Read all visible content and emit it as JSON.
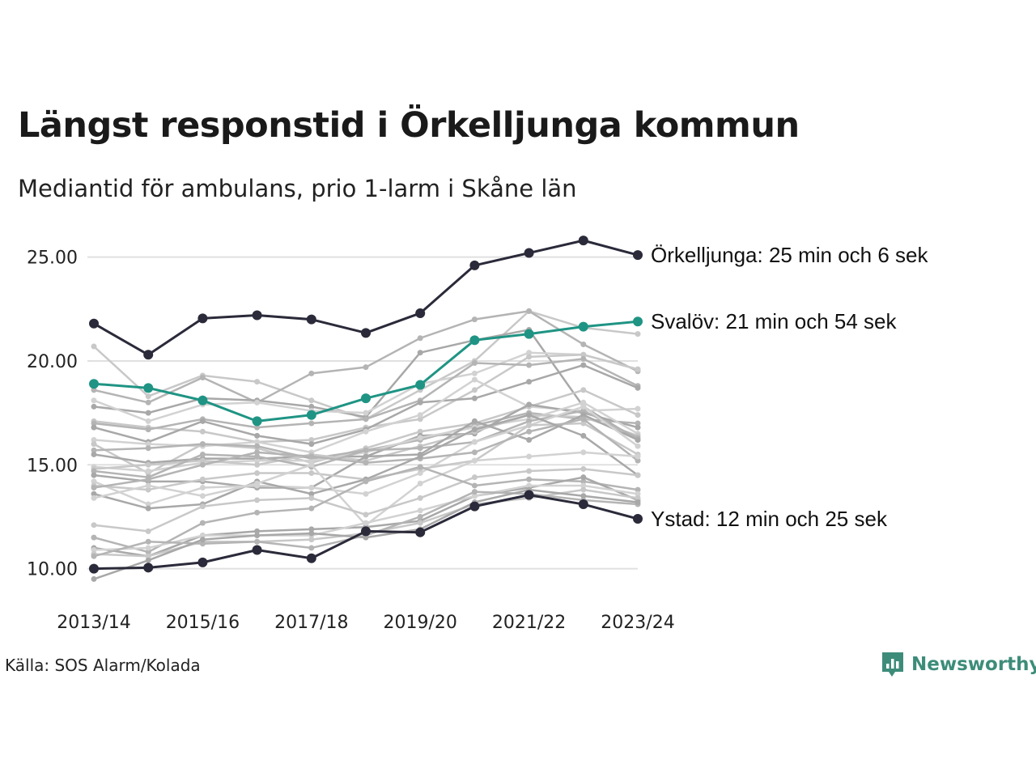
{
  "header": {
    "title": "Längst responstid i Örkelljunga kommun",
    "subtitle": "Mediantid för ambulans, prio 1-larm i Skåne län"
  },
  "footer": {
    "source": "Källa: SOS Alarm/Kolada",
    "brand": "Newsworthy"
  },
  "colors": {
    "highlight": "#2a2a3a",
    "accent": "#1f9484",
    "background_lines": [
      "#c8c8c8",
      "#b4b4b4",
      "#a8a8a8",
      "#d2d2d2"
    ],
    "grid": "#e0e0e0",
    "brand": "#3d8c7a"
  },
  "chart_data": {
    "type": "line",
    "x": [
      "2013/14",
      "2014/15",
      "2015/16",
      "2016/17",
      "2017/18",
      "2018/19",
      "2019/20",
      "2020/21",
      "2021/22",
      "2022/23",
      "2023/24"
    ],
    "x_tick_labels": [
      "2013/14",
      "2015/16",
      "2017/18",
      "2019/20",
      "2021/22",
      "2023/24"
    ],
    "y_ticks": [
      "10.00",
      "15.00",
      "20.00",
      "25.00"
    ],
    "ylim": [
      9.4,
      26.0
    ],
    "grid": true,
    "labeled_series": [
      {
        "name": "Örkelljunga",
        "label": "Örkelljunga: 25 min och 6 sek",
        "role": "highlight",
        "values": [
          21.8,
          20.3,
          22.05,
          22.2,
          22.0,
          21.35,
          22.3,
          24.6,
          25.2,
          25.8,
          25.1
        ]
      },
      {
        "name": "Svalöv",
        "label": "Svalöv: 21 min och 54 sek",
        "role": "accent",
        "values": [
          18.9,
          18.7,
          18.1,
          17.1,
          17.4,
          18.2,
          18.85,
          21.0,
          21.3,
          21.65,
          21.9
        ]
      },
      {
        "name": "Ystad",
        "label": "Ystad: 12 min och 25 sek",
        "role": "highlight",
        "values": [
          10.0,
          10.05,
          10.3,
          10.9,
          10.5,
          11.8,
          11.75,
          13.0,
          13.55,
          13.1,
          12.4
        ]
      }
    ],
    "background_series": [
      [
        20.7,
        18.3,
        19.3,
        19.0,
        18.1,
        17.2,
        18.6,
        20.0,
        22.4,
        21.6,
        21.3
      ],
      [
        18.6,
        18.0,
        19.2,
        18.0,
        19.4,
        19.7,
        21.1,
        22.0,
        22.4,
        20.8,
        19.5
      ],
      [
        17.8,
        17.5,
        18.2,
        18.1,
        17.8,
        17.3,
        20.4,
        21.0,
        21.5,
        17.8,
        16.2
      ],
      [
        18.1,
        17.1,
        17.9,
        18.0,
        17.6,
        17.5,
        18.9,
        19.4,
        20.4,
        20.3,
        19.6
      ],
      [
        17.1,
        16.8,
        16.6,
        16.1,
        16.2,
        16.8,
        17.2,
        18.6,
        20.2,
        20.3,
        19.6
      ],
      [
        17.0,
        16.7,
        17.2,
        16.8,
        17.0,
        17.2,
        18.1,
        19.9,
        19.8,
        20.1,
        18.8
      ],
      [
        16.8,
        16.1,
        17.1,
        16.4,
        16.0,
        16.7,
        18.0,
        18.2,
        19.0,
        19.8,
        18.7
      ],
      [
        16.2,
        16.0,
        15.9,
        16.1,
        15.6,
        16.6,
        17.4,
        19.1,
        17.8,
        17.6,
        17.7
      ],
      [
        16.0,
        14.6,
        16.0,
        15.8,
        15.1,
        15.8,
        16.6,
        17.0,
        17.8,
        18.6,
        17.4
      ],
      [
        15.7,
        15.8,
        16.0,
        15.9,
        15.3,
        15.7,
        16.2,
        16.9,
        17.5,
        17.2,
        17.0
      ],
      [
        15.5,
        15.1,
        15.3,
        15.3,
        15.4,
        15.4,
        16.4,
        16.5,
        17.9,
        17.5,
        16.8
      ],
      [
        14.9,
        14.7,
        15.1,
        15.2,
        15.2,
        15.6,
        16.3,
        16.8,
        17.2,
        18.0,
        16.5
      ],
      [
        14.8,
        15.0,
        15.2,
        15.0,
        15.5,
        15.2,
        15.9,
        16.6,
        17.4,
        17.3,
        16.4
      ],
      [
        14.7,
        14.4,
        15.5,
        15.4,
        14.9,
        15.7,
        15.8,
        16.1,
        17.1,
        17.6,
        16.3
      ],
      [
        14.5,
        14.2,
        14.2,
        13.9,
        13.9,
        15.4,
        15.5,
        17.1,
        16.2,
        17.4,
        16.2
      ],
      [
        14.2,
        13.1,
        13.9,
        14.0,
        13.9,
        13.6,
        14.6,
        16.1,
        16.9,
        17.8,
        15.9
      ],
      [
        14.0,
        13.8,
        14.3,
        14.6,
        14.6,
        14.3,
        14.8,
        15.2,
        16.9,
        17.0,
        15.5
      ],
      [
        13.9,
        14.3,
        15.0,
        15.6,
        15.4,
        15.1,
        15.3,
        15.6,
        16.6,
        17.2,
        15.2
      ],
      [
        13.6,
        12.9,
        13.1,
        14.2,
        13.6,
        14.3,
        15.4,
        16.7,
        17.4,
        16.4,
        14.5
      ],
      [
        13.4,
        14.0,
        13.5,
        14.1,
        15.0,
        12.1,
        14.1,
        15.2,
        15.4,
        15.6,
        15.4
      ],
      [
        12.1,
        11.8,
        13.0,
        13.3,
        13.4,
        12.6,
        13.4,
        14.4,
        14.7,
        14.8,
        14.5
      ],
      [
        11.5,
        10.8,
        12.2,
        12.7,
        12.9,
        14.2,
        14.9,
        14.0,
        14.3,
        14.2,
        13.8
      ],
      [
        11.0,
        10.6,
        11.6,
        11.8,
        11.9,
        12.0,
        12.3,
        13.5,
        13.9,
        14.4,
        13.3
      ],
      [
        10.9,
        11.0,
        11.6,
        11.6,
        11.6,
        12.2,
        12.8,
        13.5,
        14.0,
        14.0,
        13.6
      ],
      [
        10.7,
        10.6,
        11.3,
        11.3,
        11.4,
        11.7,
        12.2,
        13.1,
        13.4,
        13.8,
        13.4
      ],
      [
        10.6,
        11.3,
        11.2,
        11.3,
        11.0,
        11.6,
        12.5,
        13.7,
        13.6,
        13.3,
        13.1
      ],
      [
        9.5,
        10.4,
        11.4,
        11.6,
        11.7,
        11.5,
        11.9,
        13.2,
        13.8,
        13.5,
        13.2
      ]
    ]
  }
}
